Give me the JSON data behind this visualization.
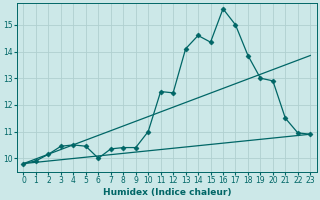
{
  "xlabel": "Humidex (Indice chaleur)",
  "background_color": "#cce8e8",
  "grid_color": "#b0d0d0",
  "line_color": "#006666",
  "xlim": [
    -0.5,
    23.5
  ],
  "ylim": [
    9.5,
    15.8
  ],
  "xticks": [
    0,
    1,
    2,
    3,
    4,
    5,
    6,
    7,
    8,
    9,
    10,
    11,
    12,
    13,
    14,
    15,
    16,
    17,
    18,
    19,
    20,
    21,
    22,
    23
  ],
  "yticks": [
    10,
    11,
    12,
    13,
    14,
    15
  ],
  "line1_x": [
    0,
    1,
    2,
    3,
    4,
    5,
    6,
    7,
    8,
    9,
    10,
    11,
    12,
    13,
    14,
    15,
    16,
    17,
    18,
    19,
    20,
    21,
    22,
    23
  ],
  "line1_y": [
    9.8,
    9.9,
    10.15,
    10.45,
    10.5,
    10.45,
    10.0,
    10.35,
    10.4,
    10.4,
    11.0,
    12.5,
    12.45,
    14.1,
    14.6,
    14.35,
    15.6,
    15.0,
    13.85,
    13.0,
    12.9,
    11.5,
    10.95,
    10.9
  ],
  "line2_x": [
    0,
    23
  ],
  "line2_y": [
    9.8,
    10.9
  ],
  "line3_x": [
    0,
    23
  ],
  "line3_y": [
    9.8,
    13.85
  ],
  "marker": "D",
  "markersize": 2.5,
  "tick_fontsize": 5.5,
  "xlabel_fontsize": 6.5
}
